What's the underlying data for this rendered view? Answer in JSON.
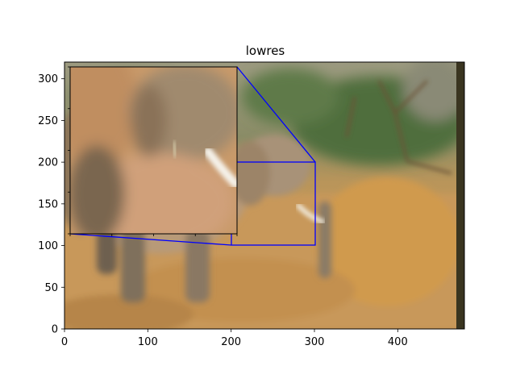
{
  "chart_data": {
    "type": "image",
    "title": "lowres",
    "image_description": "Low-resolution photograph of an elephant walking through dry golden grass, with green trees in the background",
    "xlim": [
      0,
      480
    ],
    "ylim": [
      0,
      320
    ],
    "xticks": [
      0,
      100,
      200,
      300,
      400
    ],
    "yticks": [
      0,
      50,
      100,
      150,
      200,
      250,
      300
    ],
    "inset_zoom": {
      "source_region": {
        "x": [
          200,
          300
        ],
        "y": [
          100,
          200
        ]
      },
      "indicator_color": "#0000ff"
    }
  },
  "colors": {
    "sky": "#a9a48a",
    "trees": "#4f6e3c",
    "grass": "#c89a57",
    "grass_dark": "#a87a3f",
    "elephant": "#b89a78",
    "elephant_shadow": "#7a6a55",
    "indicator": "#0000ff"
  }
}
